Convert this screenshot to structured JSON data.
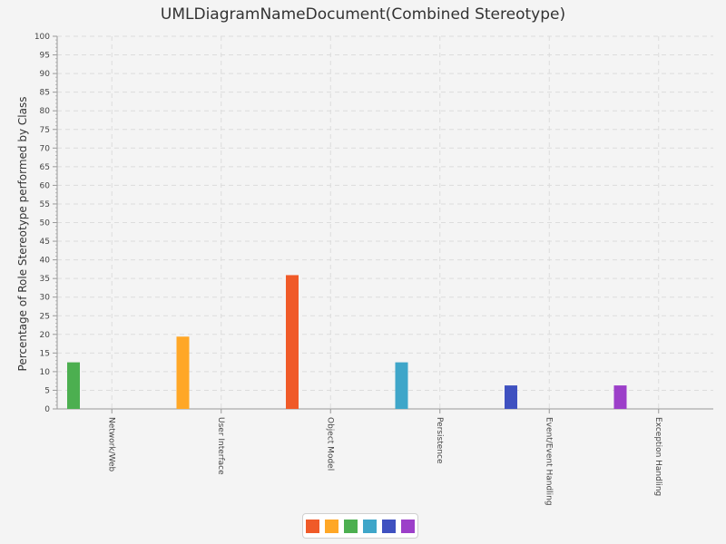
{
  "chart_data": {
    "type": "bar",
    "title": "UMLDiagramNameDocument(Combined Stereotype)",
    "ylabel": "Percentage of Role Stereotype performed by Class",
    "xlabel": "",
    "ylim": [
      0,
      100
    ],
    "ytick_step": 5,
    "grid": true,
    "legend_position": "bottom",
    "categories": [
      "Network/Web",
      "User Interface",
      "Object Model",
      "Persistence",
      "Event/Event Handling",
      "Exception Handling"
    ],
    "values": [
      12.5,
      19.4,
      35.9,
      12.5,
      6.3,
      6.3
    ],
    "bar_colors": [
      "#4caf50",
      "#ffa726",
      "#f05a28",
      "#3fa6c9",
      "#3f51c0",
      "#9c3fc9"
    ],
    "legend_colors": [
      "#f05a28",
      "#ffa726",
      "#4caf50",
      "#3fa6c9",
      "#3f51c0",
      "#9c3fc9"
    ]
  }
}
